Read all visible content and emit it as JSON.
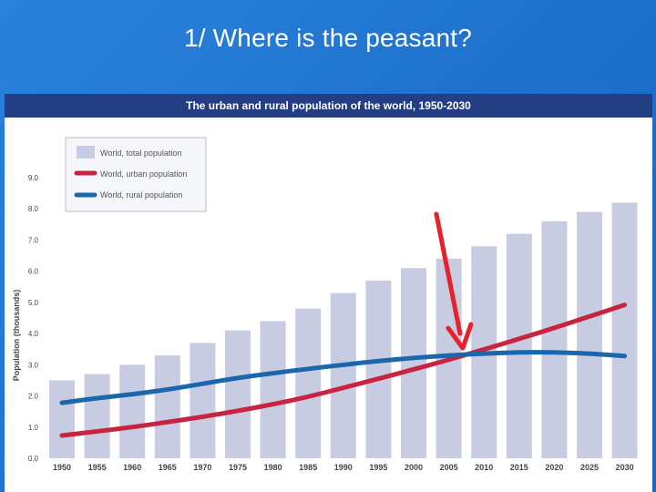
{
  "slide": {
    "title": "1/ Where is the peasant?"
  },
  "chart_data": {
    "type": "bar",
    "title": "The urban and rural population of the world, 1950-2030",
    "ylabel": "Population (thousands)",
    "xlabel": "",
    "ylim": [
      0,
      9
    ],
    "yticks": [
      "0.0",
      "1.0",
      "2.0",
      "3.0",
      "4.0",
      "5.0",
      "6.0",
      "7.0",
      "8.0",
      "9.0"
    ],
    "categories": [
      "1950",
      "1955",
      "1960",
      "1965",
      "1970",
      "1975",
      "1980",
      "1985",
      "1990",
      "1995",
      "2000",
      "2005",
      "2010",
      "2015",
      "2020",
      "2025",
      "2030"
    ],
    "series": [
      {
        "name": "World, total population",
        "kind": "bar",
        "color": "#c8cce2",
        "values": [
          2.5,
          2.7,
          3.0,
          3.3,
          3.7,
          4.1,
          4.4,
          4.8,
          5.3,
          5.7,
          6.1,
          6.4,
          6.8,
          7.2,
          7.6,
          7.9,
          8.2
        ]
      },
      {
        "name": "World, urban population",
        "kind": "line",
        "color": "#c8243f",
        "values": [
          0.73,
          0.86,
          1.0,
          1.16,
          1.33,
          1.52,
          1.73,
          1.97,
          2.26,
          2.55,
          2.85,
          3.16,
          3.49,
          3.83,
          4.18,
          4.55,
          4.92
        ]
      },
      {
        "name": "World, rural population",
        "kind": "line",
        "color": "#1b67ac",
        "values": [
          1.78,
          1.93,
          2.05,
          2.2,
          2.39,
          2.58,
          2.73,
          2.87,
          3.0,
          3.12,
          3.22,
          3.3,
          3.36,
          3.4,
          3.4,
          3.36,
          3.28
        ]
      }
    ],
    "legend": "top-left",
    "annotation": {
      "type": "arrow",
      "color": "#e8202a",
      "x": "2007",
      "y": 3.3
    }
  }
}
